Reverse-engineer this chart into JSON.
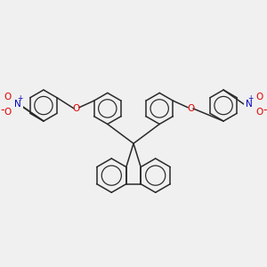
{
  "bg_color": "#f0f0f0",
  "bond_color": "#2a2a2a",
  "bond_width": 1.1,
  "O_color": "#dd0000",
  "N_color": "#0000bb",
  "figsize": [
    3.0,
    3.0
  ],
  "dpi": 100,
  "xlim": [
    -5.5,
    5.5
  ],
  "ylim": [
    -4.5,
    4.5
  ]
}
